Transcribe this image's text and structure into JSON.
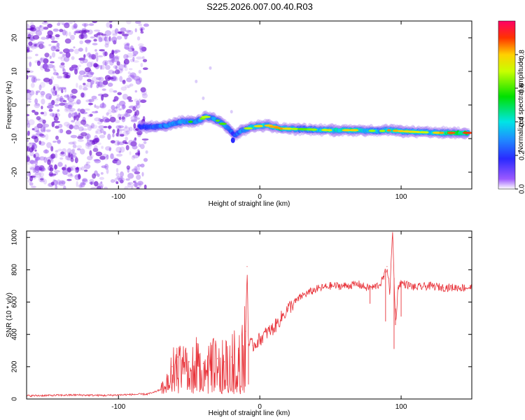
{
  "title": "S225.2026.007.00.40.R03",
  "chart_data": [
    {
      "type": "heatmap",
      "name": "spectrogram",
      "xlabel": "Height of straight line (km)",
      "ylabel": "Frequency (Hz)",
      "xlim": [
        -165,
        150
      ],
      "ylim": [
        -25,
        25
      ],
      "xticks": [
        -100,
        0,
        100
      ],
      "xtick_labels": [
        "-100",
        "0",
        "100"
      ],
      "yticks": [
        -20,
        -10,
        0,
        10,
        20
      ],
      "ytick_labels": [
        "-20",
        "-10",
        "0",
        "10",
        "20"
      ],
      "noise_region_x": [
        -165,
        -80
      ],
      "signal_trace": {
        "x": [
          -85,
          -75,
          -65,
          -55,
          -45,
          -38,
          -33,
          -28,
          -22,
          -18,
          -12,
          -5,
          5,
          15,
          30,
          50,
          70,
          85,
          90,
          100,
          110,
          120,
          130,
          140,
          148
        ],
        "frequency": [
          -6.5,
          -6.5,
          -6,
          -5,
          -5,
          -3.5,
          -4,
          -5,
          -7,
          -9,
          -7.5,
          -6.5,
          -6,
          -7,
          -7.2,
          -7.5,
          -7.5,
          -7.8,
          -7.5,
          -7.8,
          -8,
          -8.2,
          -8.3,
          -8.3,
          -8.3
        ],
        "amplitude": [
          0.35,
          0.45,
          0.55,
          0.6,
          0.55,
          0.7,
          0.55,
          0.65,
          0.5,
          0.4,
          0.6,
          0.75,
          0.8,
          0.85,
          0.6,
          0.75,
          0.8,
          0.6,
          0.85,
          0.8,
          0.75,
          0.7,
          0.85,
          0.9,
          0.9
        ]
      },
      "colorbar": {
        "label": "Normalized spectral amplitude",
        "range": [
          0,
          1
        ],
        "ticks": [
          0.0,
          0.2,
          0.4,
          0.6,
          0.8
        ],
        "tick_labels": [
          "0.0",
          "0.2",
          "0.4",
          "0.6",
          "0.8"
        ]
      }
    },
    {
      "type": "line",
      "name": "snr",
      "xlabel": "Height of straight line (km)",
      "ylabel": "SNR (10 * v/v)",
      "xlim": [
        -165,
        150
      ],
      "ylim": [
        0,
        1040
      ],
      "xticks": [
        -100,
        0,
        100
      ],
      "xtick_labels": [
        "-100",
        "0",
        "100"
      ],
      "yticks": [
        0,
        200,
        400,
        600,
        800,
        1000
      ],
      "ytick_labels": [
        "0",
        "200",
        "400",
        "600",
        "800",
        "1000"
      ],
      "series": [
        {
          "name": "SNR",
          "color": "#e8333a",
          "x": [
            -165,
            -150,
            -130,
            -110,
            -90,
            -80,
            -75,
            -70,
            -65,
            -62,
            -58,
            -55,
            -50,
            -45,
            -40,
            -35,
            -30,
            -25,
            -20,
            -15,
            -12,
            -10,
            -9,
            -8,
            -5,
            0,
            5,
            10,
            15,
            20,
            25,
            30,
            40,
            50,
            60,
            70,
            75,
            80,
            85,
            88,
            90,
            92,
            94,
            96,
            98,
            100,
            110,
            120,
            130,
            140,
            150
          ],
          "y": [
            20,
            22,
            25,
            22,
            28,
            30,
            40,
            60,
            110,
            200,
            260,
            240,
            230,
            250,
            220,
            240,
            250,
            230,
            260,
            300,
            330,
            420,
            820,
            340,
            330,
            370,
            410,
            440,
            500,
            560,
            600,
            640,
            680,
            700,
            700,
            710,
            690,
            690,
            710,
            760,
            820,
            660,
            1040,
            460,
            700,
            720,
            690,
            700,
            690,
            690,
            690
          ]
        }
      ]
    }
  ],
  "colors": {
    "background": "#ffffff",
    "line": "#e8333a",
    "noise": "#7a1fd6"
  }
}
